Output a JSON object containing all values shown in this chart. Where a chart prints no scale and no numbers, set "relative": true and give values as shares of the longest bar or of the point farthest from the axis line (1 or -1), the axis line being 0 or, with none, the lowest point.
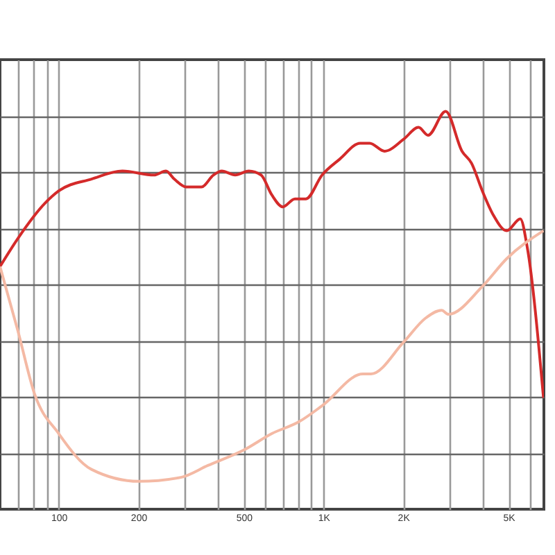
{
  "chart_data": {
    "type": "line",
    "relative": true,
    "log": "x",
    "grid": true,
    "xlim": [
      60,
      6800
    ],
    "xticks": [
      {
        "value": 70,
        "label": null
      },
      {
        "value": 80,
        "label": null
      },
      {
        "value": 90,
        "label": null
      },
      {
        "value": 100,
        "label": "100"
      },
      {
        "value": 200,
        "label": "200"
      },
      {
        "value": 300,
        "label": null
      },
      {
        "value": 400,
        "label": null
      },
      {
        "value": 500,
        "label": "500"
      },
      {
        "value": 600,
        "label": null
      },
      {
        "value": 700,
        "label": null
      },
      {
        "value": 800,
        "label": null
      },
      {
        "value": 900,
        "label": null
      },
      {
        "value": 1000,
        "label": "1K"
      },
      {
        "value": 2000,
        "label": "2K"
      },
      {
        "value": 3000,
        "label": null
      },
      {
        "value": 4000,
        "label": null
      },
      {
        "value": 5000,
        "label": "5K"
      },
      {
        "value": 6000,
        "label": null
      }
    ],
    "series": [
      {
        "color": "#d42a2a",
        "x": [
          60,
          70,
          89,
          100,
          133,
          174,
          229,
          254,
          273,
          303,
          346,
          384,
          413,
          464,
          522,
          581,
          638,
          702,
          780,
          858,
          988,
          1152,
          1376,
          1494,
          1702,
          2008,
          2286,
          2483,
          2894,
          3336,
          3622,
          3981,
          4375,
          4923,
          5540,
          5877,
          6776
        ],
        "values": [
          0.61,
          0.68,
          0.77,
          0.8,
          0.83,
          0.85,
          0.84,
          0.85,
          0.83,
          0.81,
          0.81,
          0.84,
          0.85,
          0.84,
          0.85,
          0.84,
          0.79,
          0.76,
          0.78,
          0.78,
          0.84,
          0.88,
          0.92,
          0.92,
          0.9,
          0.93,
          0.96,
          0.94,
          1,
          0.9,
          0.87,
          0.8,
          0.74,
          0.7,
          0.73,
          0.66,
          0.28
        ]
      },
      {
        "color": "#f4b9a4",
        "x": [
          60,
          70,
          81,
          100,
          133,
          201,
          289,
          366,
          504,
          638,
          809,
          988,
          1409,
          1512,
          2008,
          2426,
          2795,
          2964,
          3981,
          4923,
          6776
        ],
        "values": [
          0.61,
          0.45,
          0.29,
          0.19,
          0.1,
          0.07,
          0.08,
          0.11,
          0.15,
          0.19,
          0.22,
          0.26,
          0.34,
          0.34,
          0.42,
          0.48,
          0.5,
          0.49,
          0.56,
          0.63,
          0.7
        ]
      }
    ]
  }
}
